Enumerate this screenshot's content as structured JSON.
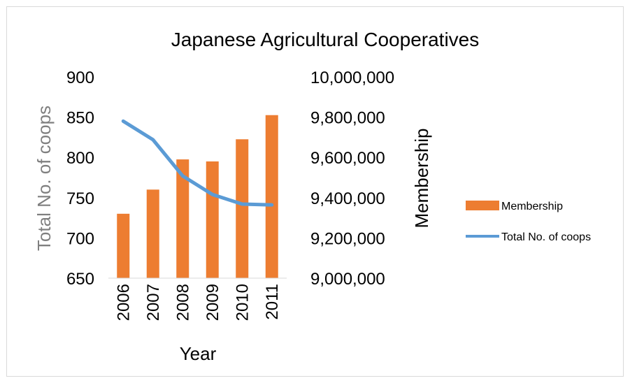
{
  "chart_data": {
    "type": "bar",
    "title": "Japanese Agricultural Cooperatives",
    "xlabel": "Year",
    "ylabel_left": "Total No. of coops",
    "ylabel_right": "Membership",
    "categories": [
      "2006",
      "2007",
      "2008",
      "2009",
      "2010",
      "2011"
    ],
    "y_left": {
      "lim": [
        650,
        900
      ],
      "ticks": [
        "650",
        "700",
        "750",
        "800",
        "850",
        "900"
      ]
    },
    "y_right": {
      "lim": [
        9000000,
        10000000
      ],
      "ticks": [
        "9,000,000",
        "9,200,000",
        "9,400,000",
        "9,600,000",
        "9,800,000",
        "10,000,000"
      ]
    },
    "series": [
      {
        "name": "Membership",
        "type": "bar",
        "axis": "right",
        "color": "#ED7D31",
        "values": [
          9320000,
          9440000,
          9590000,
          9580000,
          9690000,
          9810000
        ]
      },
      {
        "name": "Total No. of coops",
        "type": "line",
        "axis": "left",
        "color": "#5B9BD5",
        "values": [
          845,
          822,
          777,
          754,
          742,
          741
        ]
      }
    ],
    "legend_position": "right",
    "grid": false,
    "colors": {
      "left_axis_title": "#7f7f7f",
      "right_axis_title": "#000000",
      "axis_line": "#d9d9d9"
    }
  }
}
